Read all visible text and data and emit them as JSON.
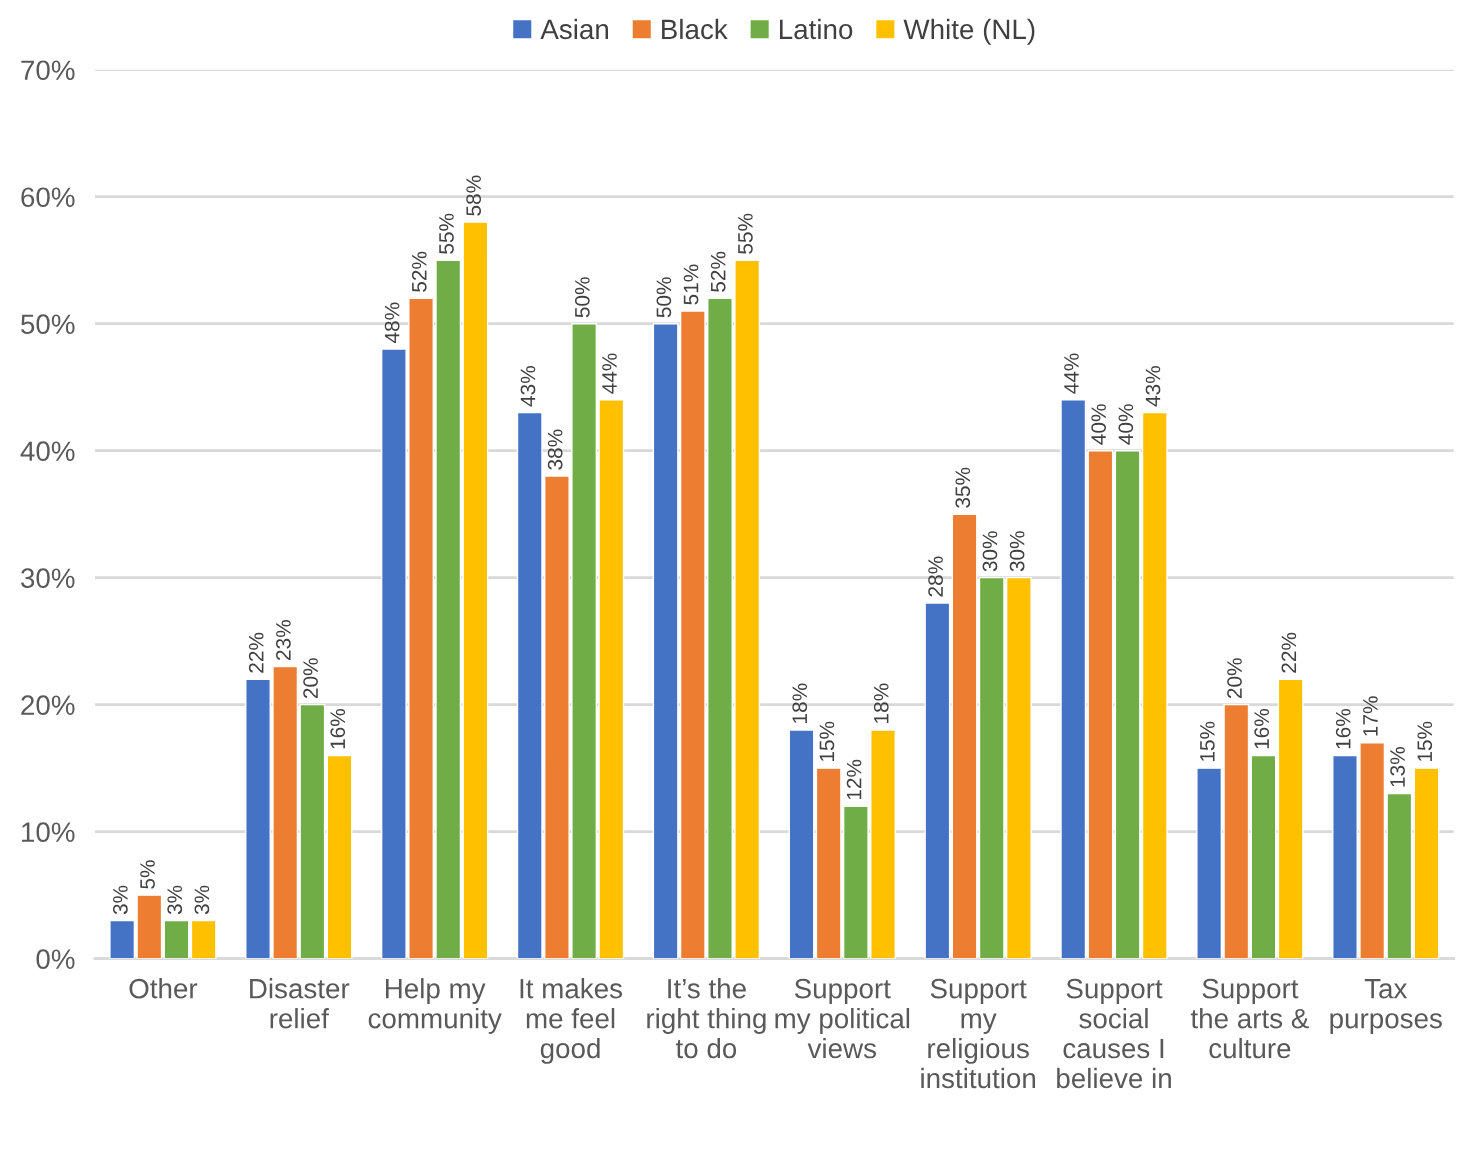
{
  "chart_data": {
    "type": "bar",
    "categories": [
      "Other",
      "Disaster\nrelief",
      "Help my\ncommunity",
      "It makes\nme feel\ngood",
      "It’s the\nright thing\nto do",
      "Support\nmy political\nviews",
      "Support\nmy\nreligious\ninstitution",
      "Support\nsocial\ncauses I\nbelieve in",
      "Support\nthe arts &\nculture",
      "Tax\npurposes"
    ],
    "series": [
      {
        "name": "Asian",
        "color": "#4472c4",
        "values": [
          3,
          22,
          48,
          43,
          50,
          18,
          28,
          44,
          15,
          16
        ],
        "value_labels": [
          "3%",
          "22%",
          "48%",
          "43%",
          "50%",
          "18%",
          "28%",
          "44%",
          "15%",
          "16%"
        ]
      },
      {
        "name": "Black",
        "color": "#ed7d31",
        "values": [
          5,
          23,
          52,
          38,
          51,
          15,
          35,
          40,
          20,
          17
        ],
        "value_labels": [
          "5%",
          "23%",
          "52%",
          "38%",
          "51%",
          "15%",
          "35%",
          "40%",
          "20%",
          "17%"
        ]
      },
      {
        "name": "Latino",
        "color": "#70ad47",
        "values": [
          3,
          20,
          55,
          50,
          52,
          12,
          30,
          40,
          16,
          13
        ],
        "value_labels": [
          "3%",
          "20%",
          "55%",
          "50%",
          "52%",
          "12%",
          "30%",
          "40%",
          "16%",
          "13%"
        ]
      },
      {
        "name": "White (NL)",
        "color": "#ffc000",
        "values": [
          3,
          16,
          58,
          44,
          55,
          18,
          30,
          43,
          22,
          15
        ],
        "value_labels": [
          "3%",
          "16%",
          "58%",
          "44%",
          "55%",
          "18%",
          "30%",
          "43%",
          "22%",
          "15%"
        ]
      }
    ],
    "ylim": [
      0,
      70
    ],
    "yticks": [
      {
        "value": 0,
        "label": "0%"
      },
      {
        "value": 10,
        "label": "10%"
      },
      {
        "value": 20,
        "label": "20%"
      },
      {
        "value": 30,
        "label": "30%"
      },
      {
        "value": 40,
        "label": "40%"
      },
      {
        "value": 50,
        "label": "50%"
      },
      {
        "value": 60,
        "label": "60%"
      },
      {
        "value": 70,
        "label": "70%"
      }
    ],
    "grid": "y",
    "legend": "top"
  }
}
